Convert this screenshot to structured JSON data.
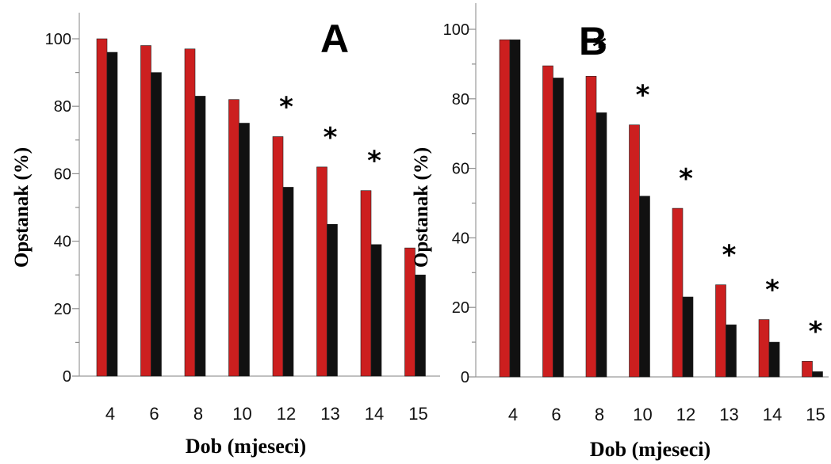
{
  "chart_data": [
    {
      "type": "bar",
      "panel_label": "A",
      "xlabel": "Dob (mjeseci)",
      "ylabel": "Opstanak (%)",
      "ylim": [
        0,
        100
      ],
      "yticks": [
        0,
        20,
        40,
        60,
        80,
        100
      ],
      "categories": [
        "4",
        "6",
        "8",
        "10",
        "12",
        "13",
        "14",
        "15"
      ],
      "series": [
        {
          "color": "#cc1f1f",
          "values": [
            100,
            98,
            97,
            82,
            71,
            62,
            55,
            38
          ]
        },
        {
          "color": "#111111",
          "values": [
            96,
            90,
            83,
            75,
            56,
            45,
            39,
            30
          ]
        }
      ],
      "significance": [
        false,
        false,
        false,
        false,
        true,
        true,
        true,
        false
      ],
      "significance_marker": "*"
    },
    {
      "type": "bar",
      "panel_label": "B",
      "xlabel": "Dob (mjeseci)",
      "ylabel": "Opstanak (%)",
      "ylim": [
        0,
        100
      ],
      "yticks": [
        0,
        20,
        40,
        60,
        80,
        100
      ],
      "categories": [
        "4",
        "6",
        "8",
        "10",
        "12",
        "13",
        "14",
        "15"
      ],
      "series": [
        {
          "color": "#cc1f1f",
          "values": [
            97,
            89.5,
            86.5,
            72.5,
            48.5,
            26.5,
            16.5,
            4.5
          ]
        },
        {
          "color": "#111111",
          "values": [
            97,
            86,
            76,
            52,
            23,
            15,
            10,
            1.5
          ]
        }
      ],
      "significance": [
        false,
        false,
        true,
        true,
        true,
        true,
        true,
        true
      ],
      "significance_marker": "*"
    }
  ]
}
